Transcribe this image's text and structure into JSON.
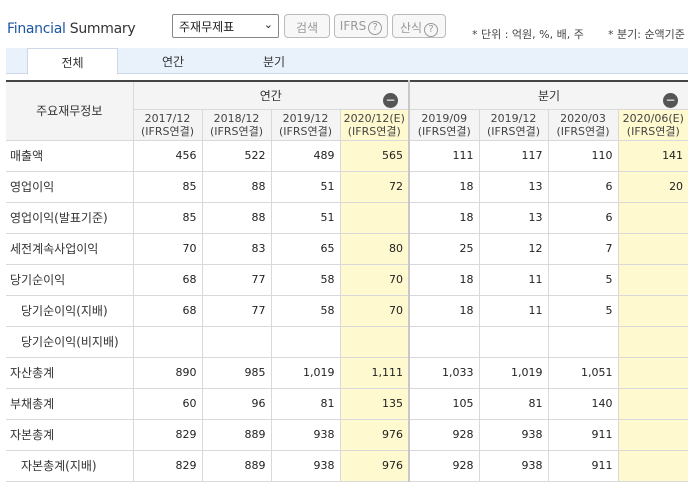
{
  "header": {
    "title_part1": "Financial",
    "title_part2": " Summary",
    "select_value": "주재무제표",
    "search_label": "검색",
    "ifrs_label": "IFRS",
    "formula_label": "산식",
    "help_glyph": "?",
    "unit_note": "* 단위 : 억원, %, 배, 주",
    "quarter_note": "* 분기: 순액기준"
  },
  "tabs": [
    {
      "label": "전체",
      "active": true
    },
    {
      "label": "연간",
      "active": false
    },
    {
      "label": "분기",
      "active": false
    }
  ],
  "table": {
    "item_header": "주요재무정보",
    "annual_group": "연간",
    "quarter_group": "분기",
    "collapse_glyph": "−",
    "period_note": "(IFRS연결)",
    "periods": [
      "2017/12",
      "2018/12",
      "2019/12",
      "2020/12(E)",
      "2019/09",
      "2019/12",
      "2020/03",
      "2020/06(E)"
    ],
    "estimate_cols": [
      3,
      7
    ],
    "rows": [
      {
        "label": "매출액",
        "sub": false,
        "values": [
          "456",
          "522",
          "489",
          "565",
          "111",
          "117",
          "110",
          "141"
        ]
      },
      {
        "label": "영업이익",
        "sub": false,
        "values": [
          "85",
          "88",
          "51",
          "72",
          "18",
          "13",
          "6",
          "20"
        ]
      },
      {
        "label": "영업이익(발표기준)",
        "sub": false,
        "values": [
          "85",
          "88",
          "51",
          "",
          "18",
          "13",
          "6",
          ""
        ]
      },
      {
        "label": "세전계속사업이익",
        "sub": false,
        "values": [
          "70",
          "83",
          "65",
          "80",
          "25",
          "12",
          "7",
          ""
        ]
      },
      {
        "label": "당기순이익",
        "sub": false,
        "values": [
          "68",
          "77",
          "58",
          "70",
          "18",
          "11",
          "5",
          ""
        ]
      },
      {
        "label": "당기순이익(지배)",
        "sub": true,
        "values": [
          "68",
          "77",
          "58",
          "70",
          "18",
          "11",
          "5",
          ""
        ]
      },
      {
        "label": "당기순이익(비지배)",
        "sub": true,
        "values": [
          "",
          "",
          "",
          "",
          "",
          "",
          "",
          ""
        ]
      },
      {
        "label": "자산총계",
        "sub": false,
        "values": [
          "890",
          "985",
          "1,019",
          "1,111",
          "1,033",
          "1,019",
          "1,051",
          ""
        ]
      },
      {
        "label": "부채총계",
        "sub": false,
        "values": [
          "60",
          "96",
          "81",
          "135",
          "105",
          "81",
          "140",
          ""
        ]
      },
      {
        "label": "자본총계",
        "sub": false,
        "values": [
          "829",
          "889",
          "938",
          "976",
          "928",
          "938",
          "911",
          ""
        ]
      },
      {
        "label": "자본총계(지배)",
        "sub": true,
        "values": [
          "829",
          "889",
          "938",
          "976",
          "928",
          "938",
          "911",
          ""
        ]
      }
    ]
  }
}
